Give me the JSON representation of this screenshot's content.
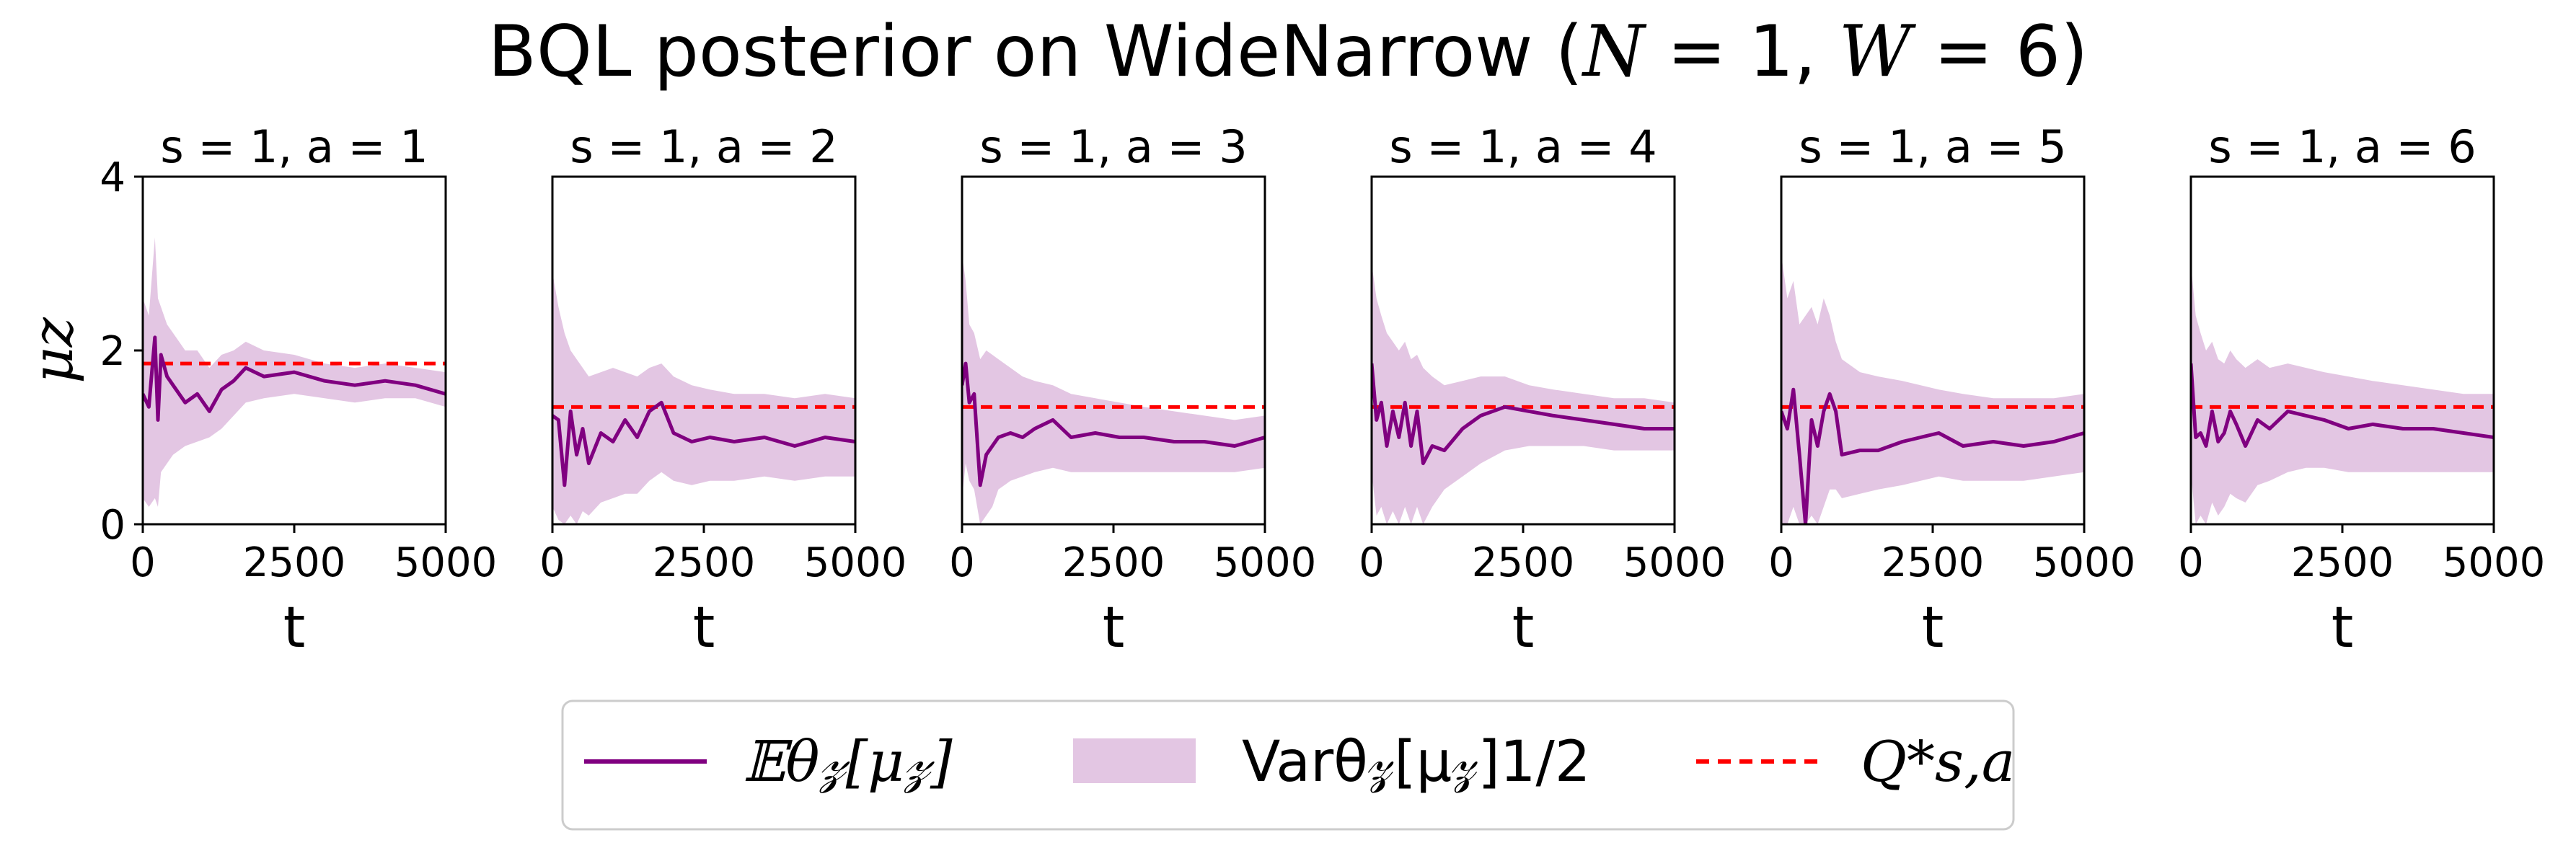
{
  "title": {
    "prefix": "BQL posterior on WideNarrow (",
    "N": "N",
    "eq1": " = 1, ",
    "W": "W",
    "eq2": " = 6)"
  },
  "colors": {
    "mean": "#800080",
    "band": "#e3c6e3",
    "target": "#ff0000",
    "axes": "#000000"
  },
  "legend": {
    "mean_label": "𝔼θ𝓏[μ𝓏]",
    "band_label": "Varθ𝓏[μ𝓏]1/2",
    "target_label": "Q*s,a"
  },
  "chart_data": [
    {
      "type": "line",
      "title": "s = 1, a = 1",
      "xlabel": "t",
      "ylabel": "μz",
      "xlim": [
        0,
        5000
      ],
      "ylim": [
        0,
        4
      ],
      "xticks": [
        "0",
        "2500",
        "5000"
      ],
      "yticks": [
        "0",
        "2",
        "4"
      ],
      "target": 1.85,
      "x": [
        0,
        100,
        200,
        250,
        300,
        400,
        500,
        700,
        900,
        1100,
        1300,
        1500,
        1700,
        2000,
        2500,
        3000,
        3500,
        4000,
        4500,
        5000
      ],
      "series": [
        {
          "values": [
            1.5,
            1.35,
            2.15,
            1.2,
            1.95,
            1.7,
            1.6,
            1.4,
            1.5,
            1.3,
            1.55,
            1.65,
            1.8,
            1.7,
            1.75,
            1.65,
            1.6,
            1.65,
            1.6,
            1.5
          ]
        },
        {
          "values": [
            2.6,
            2.4,
            3.3,
            2.6,
            2.5,
            2.3,
            2.2,
            2.0,
            2.0,
            1.8,
            1.95,
            2.0,
            2.1,
            2.0,
            1.95,
            1.85,
            1.8,
            1.85,
            1.8,
            1.75
          ]
        },
        {
          "values": [
            0.3,
            0.2,
            0.3,
            0.2,
            0.6,
            0.7,
            0.8,
            0.9,
            0.95,
            1.0,
            1.1,
            1.25,
            1.4,
            1.45,
            1.5,
            1.45,
            1.4,
            1.45,
            1.45,
            1.35
          ]
        }
      ]
    },
    {
      "type": "line",
      "title": "s = 1, a = 2",
      "xlabel": "t",
      "xlim": [
        0,
        5000
      ],
      "ylim": [
        0,
        4
      ],
      "xticks": [
        "0",
        "2500",
        "5000"
      ],
      "target": 1.35,
      "x": [
        0,
        100,
        200,
        300,
        400,
        500,
        600,
        800,
        1000,
        1200,
        1400,
        1600,
        1800,
        2000,
        2300,
        2600,
        3000,
        3500,
        4000,
        4500,
        5000
      ],
      "series": [
        {
          "values": [
            1.25,
            1.2,
            0.45,
            1.3,
            0.8,
            1.1,
            0.7,
            1.05,
            0.95,
            1.2,
            1.0,
            1.3,
            1.4,
            1.05,
            0.95,
            1.0,
            0.95,
            1.0,
            0.9,
            1.0,
            0.95
          ]
        },
        {
          "values": [
            2.9,
            2.5,
            2.2,
            2.0,
            1.9,
            1.8,
            1.7,
            1.75,
            1.8,
            1.75,
            1.7,
            1.8,
            1.85,
            1.7,
            1.6,
            1.55,
            1.5,
            1.5,
            1.45,
            1.5,
            1.45
          ]
        },
        {
          "values": [
            0.2,
            0.05,
            0.0,
            0.1,
            0.0,
            0.15,
            0.1,
            0.25,
            0.3,
            0.35,
            0.35,
            0.5,
            0.6,
            0.5,
            0.45,
            0.5,
            0.5,
            0.55,
            0.5,
            0.55,
            0.55
          ]
        }
      ]
    },
    {
      "type": "line",
      "title": "s = 1, a = 3",
      "xlabel": "t",
      "xlim": [
        0,
        5000
      ],
      "ylim": [
        0,
        4
      ],
      "xticks": [
        "0",
        "2500",
        "5000"
      ],
      "target": 1.35,
      "x": [
        0,
        60,
        120,
        200,
        300,
        400,
        500,
        600,
        800,
        1000,
        1200,
        1500,
        1800,
        2200,
        2600,
        3000,
        3500,
        4000,
        4500,
        5000
      ],
      "series": [
        {
          "values": [
            1.6,
            1.85,
            1.4,
            1.5,
            0.45,
            0.8,
            0.9,
            1.0,
            1.05,
            1.0,
            1.1,
            1.2,
            1.0,
            1.05,
            1.0,
            1.0,
            0.95,
            0.95,
            0.9,
            1.0
          ]
        },
        {
          "values": [
            3.1,
            2.8,
            2.3,
            2.2,
            1.9,
            2.0,
            1.95,
            1.9,
            1.8,
            1.7,
            1.65,
            1.6,
            1.5,
            1.45,
            1.4,
            1.35,
            1.3,
            1.25,
            1.2,
            1.25
          ]
        },
        {
          "values": [
            0.3,
            0.7,
            0.5,
            0.4,
            0.0,
            0.1,
            0.2,
            0.4,
            0.5,
            0.55,
            0.6,
            0.65,
            0.6,
            0.6,
            0.6,
            0.6,
            0.6,
            0.6,
            0.6,
            0.65
          ]
        }
      ]
    },
    {
      "type": "line",
      "title": "s = 1, a = 4",
      "xlabel": "t",
      "xlim": [
        0,
        5000
      ],
      "ylim": [
        0,
        4
      ],
      "xticks": [
        "0",
        "2500",
        "5000"
      ],
      "target": 1.35,
      "x": [
        0,
        80,
        160,
        250,
        350,
        450,
        550,
        650,
        750,
        850,
        1000,
        1200,
        1500,
        1800,
        2200,
        2600,
        3000,
        3500,
        4000,
        4500,
        5000
      ],
      "series": [
        {
          "values": [
            1.85,
            1.2,
            1.4,
            0.9,
            1.3,
            1.0,
            1.4,
            0.9,
            1.3,
            0.7,
            0.9,
            0.85,
            1.1,
            1.25,
            1.35,
            1.3,
            1.25,
            1.2,
            1.15,
            1.1,
            1.1
          ]
        },
        {
          "values": [
            3.0,
            2.6,
            2.4,
            2.2,
            2.1,
            2.0,
            2.1,
            1.9,
            1.95,
            1.8,
            1.7,
            1.6,
            1.65,
            1.7,
            1.7,
            1.6,
            1.55,
            1.5,
            1.45,
            1.45,
            1.4
          ]
        },
        {
          "values": [
            0.6,
            0.1,
            0.2,
            0.0,
            0.15,
            0.0,
            0.2,
            0.0,
            0.2,
            0.0,
            0.2,
            0.4,
            0.55,
            0.7,
            0.85,
            0.9,
            0.9,
            0.9,
            0.85,
            0.85,
            0.85
          ]
        }
      ]
    },
    {
      "type": "line",
      "title": "s = 1, a = 5",
      "xlabel": "t",
      "xlim": [
        0,
        5000
      ],
      "ylim": [
        0,
        4
      ],
      "xticks": [
        "0",
        "2500",
        "5000"
      ],
      "target": 1.35,
      "x": [
        0,
        100,
        200,
        300,
        400,
        500,
        600,
        700,
        800,
        900,
        1000,
        1300,
        1600,
        2000,
        2300,
        2600,
        3000,
        3500,
        4000,
        4500,
        5000
      ],
      "series": [
        {
          "values": [
            1.3,
            1.1,
            1.55,
            0.8,
            0.0,
            1.2,
            0.9,
            1.3,
            1.5,
            1.3,
            0.8,
            0.85,
            0.85,
            0.95,
            1.0,
            1.05,
            0.9,
            0.95,
            0.9,
            0.95,
            1.05
          ]
        },
        {
          "values": [
            3.1,
            2.6,
            2.8,
            2.3,
            2.4,
            2.5,
            2.3,
            2.6,
            2.4,
            2.1,
            1.9,
            1.75,
            1.7,
            1.65,
            1.6,
            1.55,
            1.5,
            1.45,
            1.45,
            1.45,
            1.5
          ]
        },
        {
          "values": [
            0.0,
            0.0,
            0.2,
            0.0,
            0.0,
            0.1,
            0.0,
            0.2,
            0.4,
            0.4,
            0.3,
            0.35,
            0.4,
            0.45,
            0.5,
            0.55,
            0.5,
            0.5,
            0.5,
            0.55,
            0.6
          ]
        }
      ]
    },
    {
      "type": "line",
      "title": "s = 1, a = 6",
      "xlabel": "t",
      "xlim": [
        0,
        5000
      ],
      "ylim": [
        0,
        4
      ],
      "xticks": [
        "0",
        "2500",
        "5000"
      ],
      "target": 1.35,
      "x": [
        0,
        80,
        160,
        250,
        350,
        450,
        550,
        650,
        750,
        900,
        1100,
        1300,
        1600,
        1900,
        2200,
        2600,
        3000,
        3500,
        4000,
        4500,
        5000
      ],
      "series": [
        {
          "values": [
            1.85,
            1.0,
            1.05,
            0.9,
            1.3,
            0.95,
            1.05,
            1.3,
            1.15,
            0.9,
            1.2,
            1.1,
            1.3,
            1.25,
            1.2,
            1.1,
            1.15,
            1.1,
            1.1,
            1.05,
            1.0
          ]
        },
        {
          "values": [
            3.0,
            2.4,
            2.2,
            2.0,
            2.1,
            1.9,
            1.85,
            2.0,
            1.9,
            1.8,
            1.9,
            1.8,
            1.85,
            1.8,
            1.75,
            1.7,
            1.65,
            1.6,
            1.55,
            1.5,
            1.5
          ]
        },
        {
          "values": [
            0.6,
            0.0,
            0.1,
            0.0,
            0.25,
            0.1,
            0.2,
            0.35,
            0.3,
            0.25,
            0.45,
            0.5,
            0.6,
            0.65,
            0.65,
            0.6,
            0.6,
            0.6,
            0.6,
            0.6,
            0.6
          ]
        }
      ]
    }
  ]
}
